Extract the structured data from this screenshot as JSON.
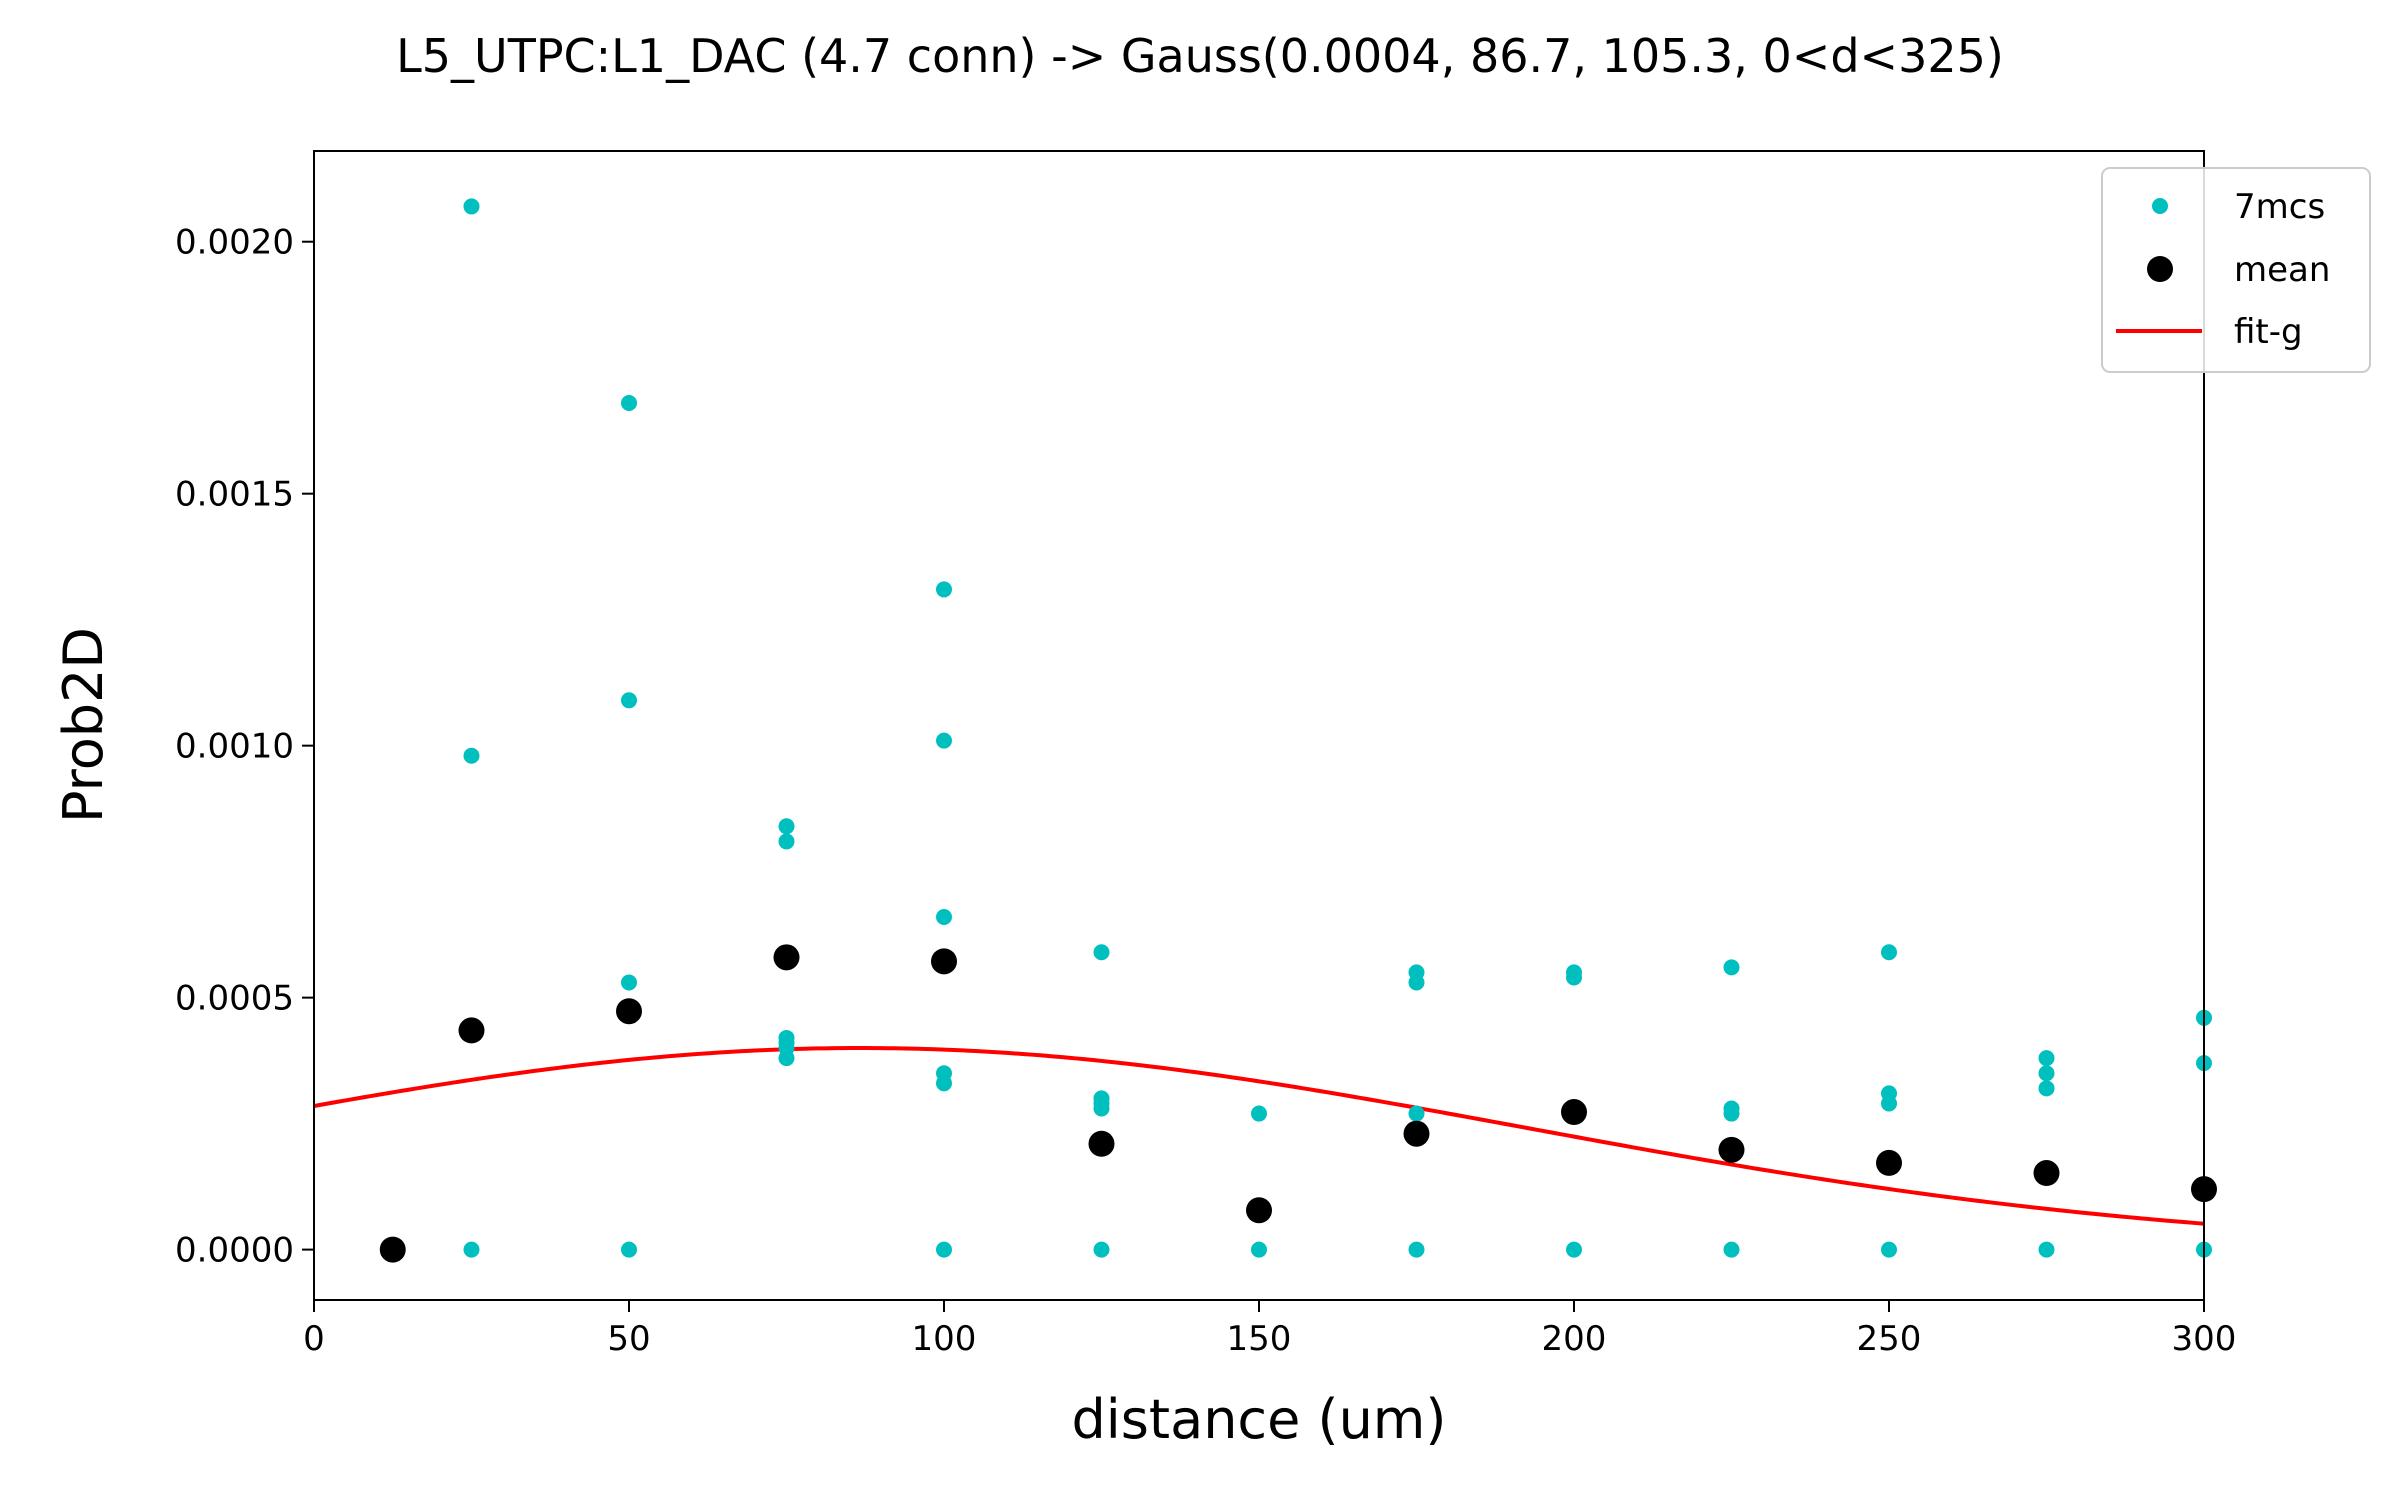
{
  "chart_data": {
    "type": "scatter",
    "title": "L5_UTPC:L1_DAC (4.7 conn) -> Gauss(0.0004, 86.7, 105.3, 0<d<325)",
    "xlabel": "distance (um)",
    "ylabel": "Prob2D",
    "xlim": [
      0,
      300
    ],
    "ylim": [
      -0.0001,
      0.00218
    ],
    "x_ticks": [
      0,
      50,
      100,
      150,
      200,
      250,
      300
    ],
    "x_tick_labels": [
      "0",
      "50",
      "100",
      "150",
      "200",
      "250",
      "300"
    ],
    "y_ticks": [
      0,
      0.0005,
      0.001,
      0.0015,
      0.002
    ],
    "y_tick_labels": [
      "0.0000",
      "0.0005",
      "0.0010",
      "0.0015",
      "0.0020"
    ],
    "grid": false,
    "legend": {
      "position": "top-right",
      "entries": [
        "7mcs",
        "mean",
        "fit-g"
      ]
    },
    "colors": {
      "7mcs": "#00bfbf",
      "mean": "#000000",
      "fit-g": "#ff0000"
    },
    "series": [
      {
        "name": "7mcs",
        "kind": "scatter",
        "points": [
          [
            25,
            0.00207
          ],
          [
            25,
            0.00098
          ],
          [
            25,
            0
          ],
          [
            50,
            0.00168
          ],
          [
            50,
            0.00109
          ],
          [
            50,
            0.00053
          ],
          [
            50,
            0
          ],
          [
            75,
            0.00084
          ],
          [
            75,
            0.00081
          ],
          [
            75,
            0.00042
          ],
          [
            75,
            0.00041
          ],
          [
            75,
            0.0004
          ],
          [
            75,
            0.00038
          ],
          [
            100,
            0.00131
          ],
          [
            100,
            0.00101
          ],
          [
            100,
            0.00066
          ],
          [
            100,
            0.00035
          ],
          [
            100,
            0.00033
          ],
          [
            100,
            0
          ],
          [
            125,
            0.00059
          ],
          [
            125,
            0.0003
          ],
          [
            125,
            0.00029
          ],
          [
            125,
            0.00028
          ],
          [
            125,
            0
          ],
          [
            150,
            0.00027
          ],
          [
            150,
            0
          ],
          [
            175,
            0.00055
          ],
          [
            175,
            0.00053
          ],
          [
            175,
            0.00027
          ],
          [
            175,
            0
          ],
          [
            200,
            0.00055
          ],
          [
            200,
            0.00054
          ],
          [
            200,
            0.00027
          ],
          [
            200,
            0
          ],
          [
            225,
            0.00056
          ],
          [
            225,
            0.00028
          ],
          [
            225,
            0.00027
          ],
          [
            225,
            0
          ],
          [
            250,
            0.00059
          ],
          [
            250,
            0.00031
          ],
          [
            250,
            0.00029
          ],
          [
            250,
            0
          ],
          [
            275,
            0.00038
          ],
          [
            275,
            0.00035
          ],
          [
            275,
            0.00032
          ],
          [
            275,
            0
          ],
          [
            300,
            0.00046
          ],
          [
            300,
            0.00037
          ],
          [
            300,
            0
          ]
        ]
      },
      {
        "name": "mean",
        "kind": "scatter",
        "points": [
          [
            12.5,
            0
          ],
          [
            25,
            0.000435
          ],
          [
            50,
            0.000473
          ],
          [
            75,
            0.00058
          ],
          [
            100,
            0.000572
          ],
          [
            125,
            0.00021
          ],
          [
            150,
            7.8e-05
          ],
          [
            175,
            0.00023
          ],
          [
            200,
            0.000273
          ],
          [
            225,
            0.000198
          ],
          [
            250,
            0.000172
          ],
          [
            275,
            0.000152
          ],
          [
            300,
            0.00012
          ]
        ]
      },
      {
        "name": "fit-g",
        "kind": "line",
        "function": "gauss",
        "amplitude": 0.0004,
        "mu": 86.7,
        "sigma": 105.3,
        "domain": [
          0,
          325
        ]
      }
    ]
  }
}
